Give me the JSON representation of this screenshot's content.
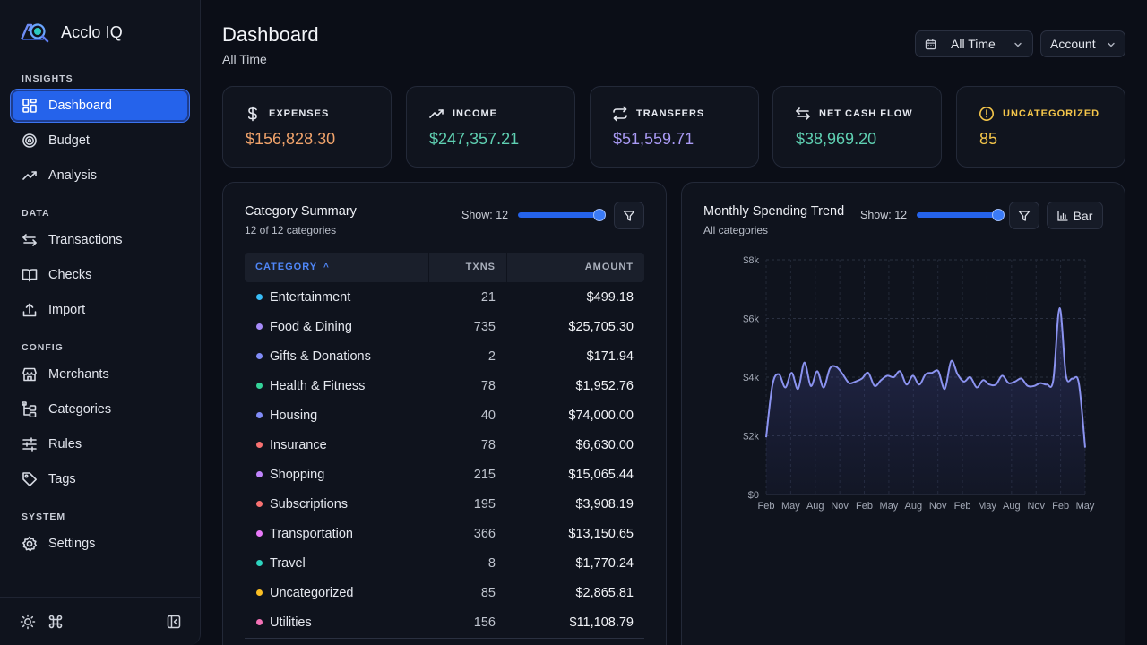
{
  "app": {
    "name": "Acclo IQ"
  },
  "sidebar": {
    "sections": [
      {
        "title": "INSIGHTS",
        "items": [
          {
            "label": "Dashboard",
            "icon": "dashboard-grid-icon",
            "active": true
          },
          {
            "label": "Budget",
            "icon": "target-icon"
          },
          {
            "label": "Analysis",
            "icon": "trending-up-icon"
          }
        ]
      },
      {
        "title": "DATA",
        "items": [
          {
            "label": "Transactions",
            "icon": "arrows-swap-icon"
          },
          {
            "label": "Checks",
            "icon": "book-open-icon"
          },
          {
            "label": "Import",
            "icon": "upload-icon"
          }
        ]
      },
      {
        "title": "CONFIG",
        "items": [
          {
            "label": "Merchants",
            "icon": "store-icon"
          },
          {
            "label": "Categories",
            "icon": "category-tree-icon"
          },
          {
            "label": "Rules",
            "icon": "sliders-icon"
          },
          {
            "label": "Tags",
            "icon": "tag-icon"
          }
        ]
      },
      {
        "title": "SYSTEM",
        "items": [
          {
            "label": "Settings",
            "icon": "gear-icon"
          }
        ]
      }
    ],
    "footer": [
      "sun-icon",
      "command-icon",
      "collapse-sidebar-icon"
    ]
  },
  "header": {
    "title": "Dashboard",
    "subtitle": "All Time",
    "period_select": "All Time",
    "account_select": "Account"
  },
  "stats": [
    {
      "label": "EXPENSES",
      "value": "$156,828.30",
      "color": "#f0a36b",
      "icon": "dollar-icon"
    },
    {
      "label": "INCOME",
      "value": "$247,357.21",
      "color": "#5fd0b2",
      "icon": "trending-up-icon"
    },
    {
      "label": "TRANSFERS",
      "value": "$51,559.71",
      "color": "#a99af4",
      "icon": "arrows-swap-icon"
    },
    {
      "label": "NET CASH FLOW",
      "value": "$38,969.20",
      "color": "#5fd0b2",
      "icon": "arrows-exchange-icon"
    },
    {
      "label": "UNCATEGORIZED",
      "value": "85",
      "color": "#f5c64a",
      "icon": "alert-circle-icon"
    }
  ],
  "category_summary": {
    "title": "Category Summary",
    "subtitle": "12 of 12 categories",
    "show_label": "Show: 12",
    "show_level": 1.0,
    "columns": {
      "category": "CATEGORY",
      "txns": "TXNS",
      "amount": "AMOUNT"
    },
    "sort_indicator": "^",
    "rows": [
      {
        "name": "Entertainment",
        "txns": "21",
        "amount": "$499.18",
        "color": "#38bdf8"
      },
      {
        "name": "Food & Dining",
        "txns": "735",
        "amount": "$25,705.30",
        "color": "#a78bfa"
      },
      {
        "name": "Gifts & Donations",
        "txns": "2",
        "amount": "$171.94",
        "color": "#818cf8"
      },
      {
        "name": "Health & Fitness",
        "txns": "78",
        "amount": "$1,952.76",
        "color": "#34d399"
      },
      {
        "name": "Housing",
        "txns": "40",
        "amount": "$74,000.00",
        "color": "#818cf8"
      },
      {
        "name": "Insurance",
        "txns": "78",
        "amount": "$6,630.00",
        "color": "#f87171"
      },
      {
        "name": "Shopping",
        "txns": "215",
        "amount": "$15,065.44",
        "color": "#c084fc"
      },
      {
        "name": "Subscriptions",
        "txns": "195",
        "amount": "$3,908.19",
        "color": "#f87171"
      },
      {
        "name": "Transportation",
        "txns": "366",
        "amount": "$13,150.65",
        "color": "#e879f9"
      },
      {
        "name": "Travel",
        "txns": "8",
        "amount": "$1,770.24",
        "color": "#2dd4bf"
      },
      {
        "name": "Uncategorized",
        "txns": "85",
        "amount": "$2,865.81",
        "color": "#fbbf24"
      },
      {
        "name": "Utilities",
        "txns": "156",
        "amount": "$11,108.79",
        "color": "#f472b6"
      }
    ]
  },
  "trend": {
    "title": "Monthly Spending Trend",
    "subtitle": "All categories",
    "show_label": "Show: 12",
    "show_level": 1.0,
    "view_button": "Bar"
  },
  "chart_data": {
    "type": "area",
    "title": "Monthly Spending Trend",
    "ylim": [
      0,
      8000
    ],
    "yticks": [
      "$0",
      "$2k",
      "$4k",
      "$6k",
      "$8k"
    ],
    "xtick_labels": [
      "Feb",
      "May",
      "Aug",
      "Nov",
      "Feb",
      "May",
      "Aug",
      "Nov",
      "Feb",
      "May",
      "Aug",
      "Nov",
      "Feb",
      "May"
    ],
    "line_color": "#8b93f0",
    "grid": true,
    "series": [
      {
        "values": [
          1950,
          3750,
          4100,
          3650,
          4150,
          3600,
          4500,
          3700,
          4200,
          3650,
          4300,
          4350,
          4100,
          3800,
          3850,
          3950,
          4150,
          3700,
          3900,
          4050,
          4000,
          4200,
          3750,
          4050,
          3750,
          4100,
          4150,
          4200,
          3600,
          4550,
          4100,
          3850,
          4000,
          3650,
          3900,
          3750,
          3750,
          4050,
          3800,
          3850,
          3950,
          3700,
          3700,
          3800,
          3750,
          3900,
          6350,
          4050,
          3950,
          3800,
          1600
        ]
      }
    ]
  }
}
